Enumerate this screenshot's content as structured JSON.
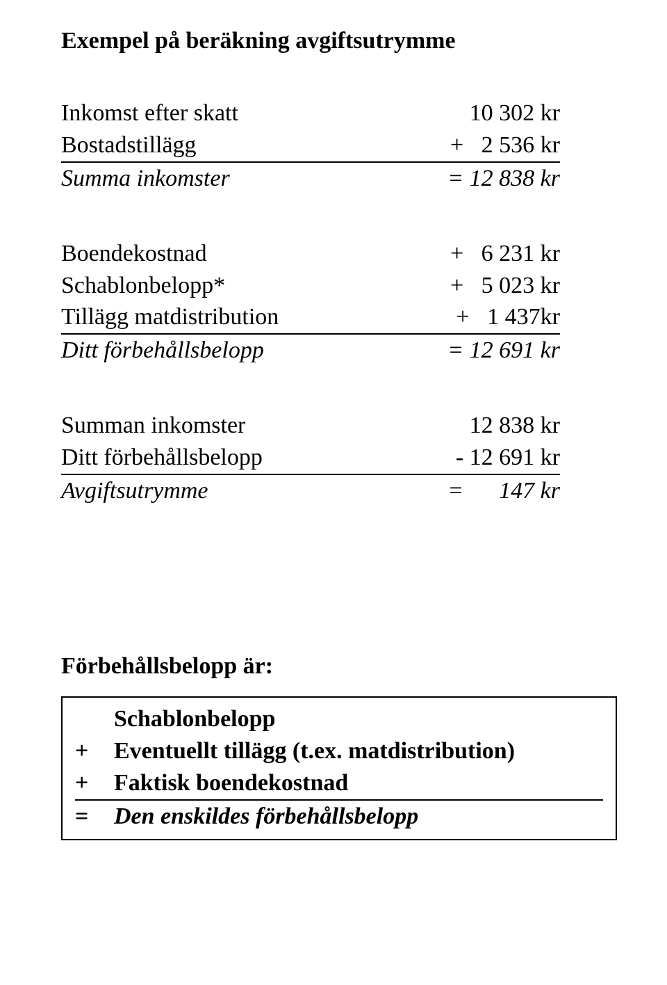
{
  "title": "Exempel på beräkning avgiftsutrymme",
  "block1": {
    "r1": {
      "label": "Inkomst efter skatt",
      "value": "   10 302 kr"
    },
    "r2": {
      "label": "Bostadstillägg",
      "value": "+   2 536 kr"
    },
    "r3": {
      "label": "Summa inkomster",
      "value": "= 12 838 kr"
    }
  },
  "block2": {
    "r1": {
      "label": "Boendekostnad",
      "value": "+   6 231 kr"
    },
    "r2": {
      "label": "Schablonbelopp*",
      "value": "+   5 023 kr"
    },
    "r3": {
      "label": "Tillägg matdistribution",
      "value": "+   1 437kr"
    },
    "r4": {
      "label": "Ditt förbehållsbelopp",
      "value": "= 12 691 kr"
    }
  },
  "block3": {
    "r1": {
      "label": "Summan inkomster",
      "value": "   12 838 kr"
    },
    "r2": {
      "label": "Ditt förbehållsbelopp",
      "value": " - 12 691 kr"
    },
    "r3": {
      "label": "Avgiftsutrymme",
      "value": "=      147 kr"
    }
  },
  "footer": {
    "heading": "Förbehållsbelopp är:",
    "r1": {
      "op": "",
      "text": "Schablonbelopp"
    },
    "r2": {
      "op": "+",
      "text": "Eventuellt tillägg (t.ex. matdistribution)"
    },
    "r3": {
      "op": "+",
      "text": "Faktisk boendekostnad"
    },
    "r4": {
      "op": "=",
      "text": "Den enskildes förbehållsbelopp"
    }
  },
  "colors": {
    "text": "#000000",
    "bg": "#ffffff"
  },
  "fontsize_pt": 25
}
